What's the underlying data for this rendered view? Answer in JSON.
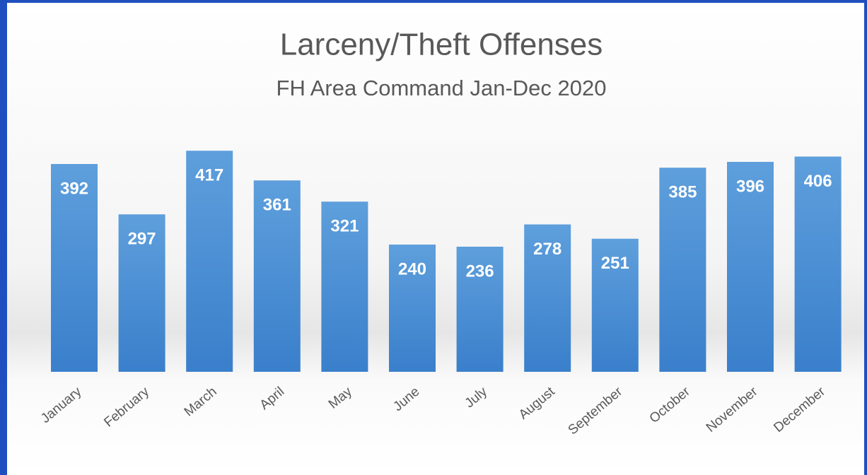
{
  "chart_data": {
    "type": "bar",
    "title": "Larceny/Theft Offenses",
    "subtitle": "FH Area Command Jan-Dec 2020",
    "categories": [
      "January",
      "February",
      "March",
      "April",
      "May",
      "June",
      "July",
      "August",
      "September",
      "October",
      "November",
      "December"
    ],
    "values": [
      392,
      297,
      417,
      361,
      321,
      240,
      236,
      278,
      251,
      385,
      396,
      406
    ],
    "color": "#4a8ad4"
  }
}
